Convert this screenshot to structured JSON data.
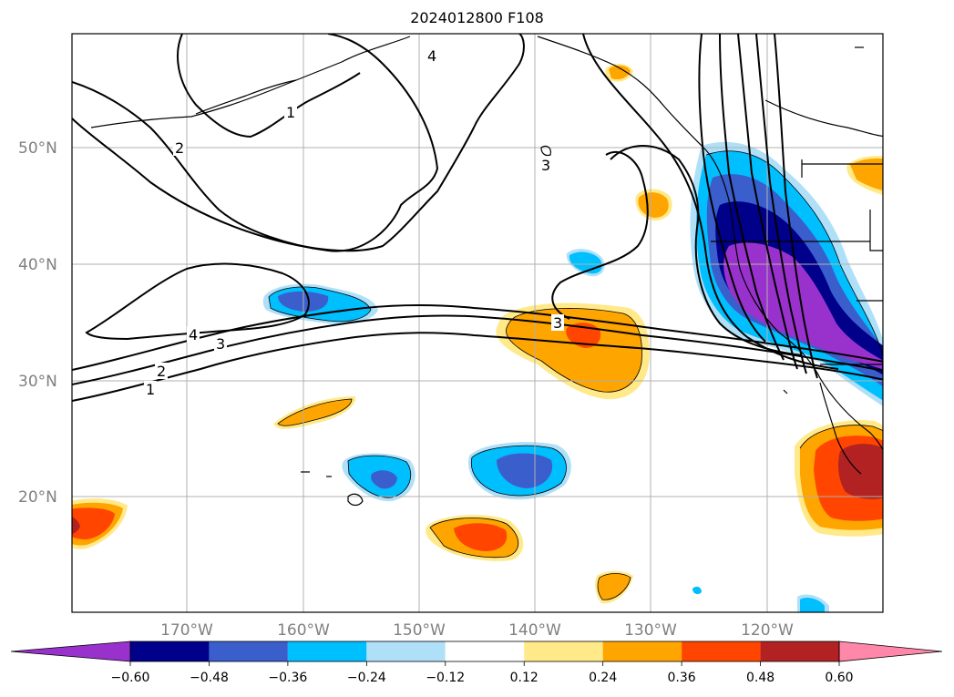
{
  "title": "2024012800 F108",
  "map": {
    "lat_labels": [
      "50°N",
      "40°N",
      "30°N",
      "20°N"
    ],
    "lon_labels": [
      "170°W",
      "160°W",
      "150°W",
      "140°W",
      "130°W",
      "120°W"
    ],
    "contour_labels": [
      "1",
      "2",
      "4",
      "3",
      "3",
      "4",
      "3",
      "2",
      "1"
    ]
  },
  "colorbar": {
    "ticks": [
      "−0.60",
      "−0.48",
      "−0.36",
      "−0.24",
      "−0.12",
      "0.12",
      "0.24",
      "0.36",
      "0.48",
      "0.60"
    ],
    "colors": [
      "#9932cc",
      "#00008b",
      "#3a5fcd",
      "#00bfff",
      "#b0e0f8",
      "#ffffff",
      "#ffe989",
      "#ffa500",
      "#ff4500",
      "#b22222",
      "#ff88aa"
    ]
  }
}
